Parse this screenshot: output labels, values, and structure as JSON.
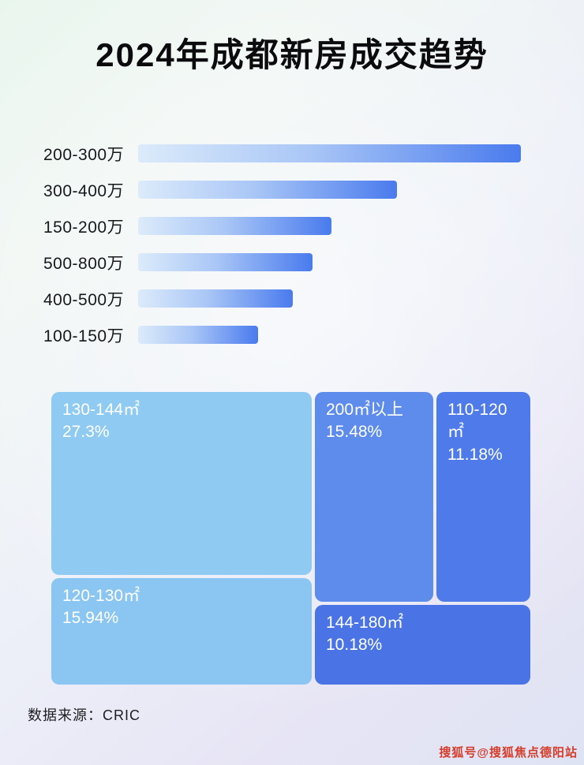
{
  "page": {
    "title": "2024年成都新房成交趋势",
    "source": "数据来源：CRIC",
    "watermark": "搜狐号@搜狐焦点德阳站"
  },
  "chart_data": [
    {
      "type": "bar",
      "title": "2024年成都新房成交趋势",
      "orientation": "horizontal",
      "categories": [
        "200-300万",
        "300-400万",
        "150-200万",
        "500-800万",
        "400-500万",
        "100-150万"
      ],
      "values": [
        99,
        67,
        50,
        45,
        40,
        31
      ],
      "value_note": "no numeric axis shown; values are relative bar lengths (% of longest bar)",
      "xlabel": "",
      "ylabel": "",
      "grid": false,
      "legend": false,
      "bar_gradient": [
        "#dcebfb",
        "#4a7bee"
      ]
    },
    {
      "type": "treemap",
      "title": "",
      "blocks": [
        {
          "label": "130-144㎡",
          "value": "27.3%",
          "color": "#8fcaf3"
        },
        {
          "label": "200㎡以上",
          "value": "15.48%",
          "color": "#5d8cec"
        },
        {
          "label": "110-120㎡",
          "value": "11.18%",
          "color": "#4e7be9"
        },
        {
          "label": "120-130㎡",
          "value": "15.94%",
          "color": "#8bc5f1"
        },
        {
          "label": "144-180㎡",
          "value": "10.18%",
          "color": "#4a74e6"
        }
      ]
    }
  ]
}
